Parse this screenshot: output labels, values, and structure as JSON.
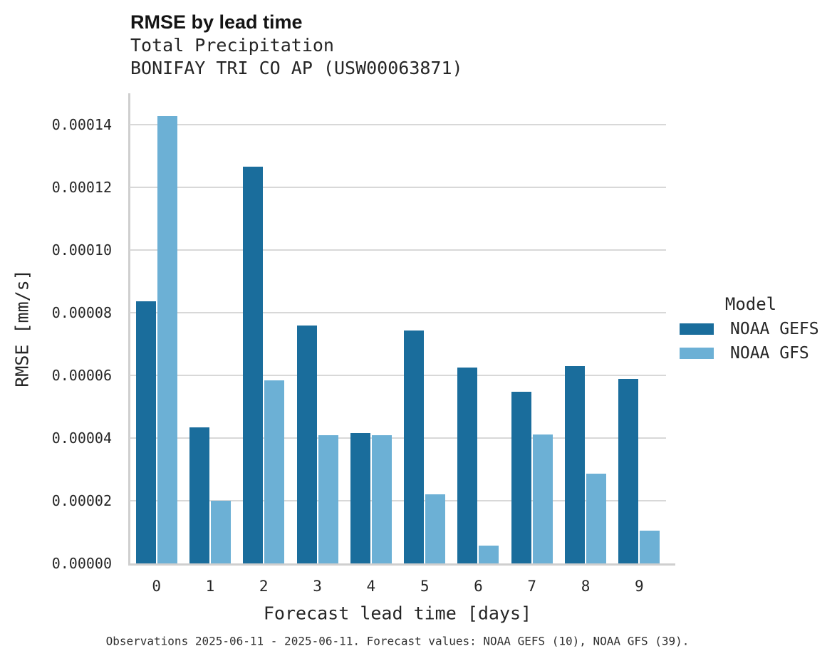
{
  "title": "RMSE by lead time",
  "subtitle_line1": "Total Precipitation",
  "subtitle_line2": "BONIFAY TRI CO AP (USW00063871)",
  "caption": "Observations 2025-06-11 - 2025-06-11. Forecast values: NOAA GEFS (10), NOAA GFS (39).",
  "legend": {
    "title": "Model",
    "items": [
      {
        "label": "NOAA GEFS",
        "color": "#1a6d9c"
      },
      {
        "label": "NOAA GFS",
        "color": "#6cb0d5"
      }
    ]
  },
  "colors": {
    "gefs_bar": "#1a6d9c",
    "gfs_bar": "#6cb0d5",
    "gridline": "#d8d8d8",
    "axis_line": "#cfcfcf"
  },
  "chart_data": {
    "type": "bar",
    "title": "RMSE by lead time",
    "subtitle": [
      "Total Precipitation",
      "BONIFAY TRI CO AP (USW00063871)"
    ],
    "xlabel": "Forecast lead time [days]",
    "ylabel": "RMSE [mm/s]",
    "categories": [
      "0",
      "1",
      "2",
      "3",
      "4",
      "5",
      "6",
      "7",
      "8",
      "9"
    ],
    "series": [
      {
        "name": "NOAA GEFS",
        "color": "#1a6d9c",
        "values": [
          8.36e-05,
          4.35e-05,
          0.0001267,
          7.58e-05,
          4.15e-05,
          7.43e-05,
          6.26e-05,
          5.47e-05,
          6.3e-05,
          5.89e-05
        ]
      },
      {
        "name": "NOAA GFS",
        "color": "#6cb0d5",
        "values": [
          0.0001427,
          2e-05,
          5.84e-05,
          4.1e-05,
          4.08e-05,
          2.2e-05,
          5.6e-06,
          4.12e-05,
          2.86e-05,
          1.05e-05
        ]
      }
    ],
    "ylim": [
      0,
      0.00015
    ],
    "y_ticks": [
      0,
      2e-05,
      4e-05,
      6e-05,
      8e-05,
      0.0001,
      0.00012,
      0.00014
    ],
    "y_tick_labels": [
      "0.00000",
      "0.00002",
      "0.00004",
      "0.00006",
      "0.00008",
      "0.00010",
      "0.00012",
      "0.00014"
    ],
    "grid": "horizontal",
    "legend_title": "Model",
    "legend_position": "right"
  }
}
